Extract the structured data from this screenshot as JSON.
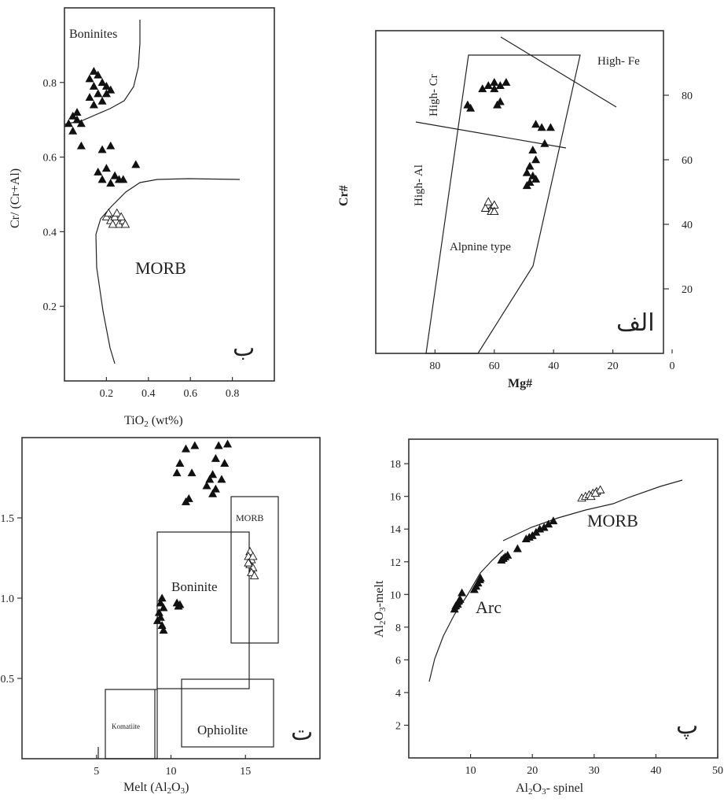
{
  "charts": {
    "b": {
      "type": "scatter",
      "tag": "ب",
      "xlabel_prefix": "TiO",
      "xlabel_sub": "2",
      "xlabel_suffix": " (wt%)",
      "ylabel": "Cr/ (Cr+Al)",
      "xlim": [
        0,
        1.0
      ],
      "ylim": [
        0,
        1.0
      ],
      "xticks": [
        "0.2",
        "0.4",
        "0.6",
        "0.8"
      ],
      "yticks": [
        "0.2",
        "0.4",
        "0.6",
        "0.8"
      ],
      "regions": {
        "boninites": "Boninites",
        "morb": "MORB"
      }
    },
    "alef": {
      "type": "scatter",
      "tag": "الف",
      "xlabel": "Mg#",
      "ylabel": "Cr#",
      "xlim": [
        100,
        0
      ],
      "ylim": [
        0,
        100
      ],
      "xticks": [
        "80",
        "60",
        "40",
        "20",
        "0"
      ],
      "yticks": [
        "20",
        "40",
        "60",
        "80"
      ],
      "regions": {
        "high_fe": "High- Fe",
        "high_cr": "High- Cr",
        "high_al": "High- Al",
        "alpine": "Alpnine type"
      }
    },
    "te": {
      "type": "scatter",
      "tag": "ت",
      "xlabel_prefix": "Melt (Al",
      "xlabel_sub1": "2",
      "xlabel_mid": "O",
      "xlabel_sub2": "3",
      "xlabel_suffix": ")",
      "ylabel": "",
      "xticks": [
        "5",
        "10",
        "15"
      ],
      "yticks": [
        "0.5",
        "1.0",
        "1.5"
      ],
      "regions": {
        "komatiite": "Komatiite",
        "boninite": "Boninite",
        "morb": "MORB",
        "ophiolite": "Ophiolite"
      }
    },
    "pe": {
      "type": "scatter",
      "tag": "پ",
      "xlabel_prefix": "Al",
      "xlabel_sub1": "2",
      "xlabel_mid": "O",
      "xlabel_sub2": "3",
      "xlabel_suffix": "- spinel",
      "ylabel_prefix": "Al",
      "ylabel_sub1": "2",
      "ylabel_mid": "O",
      "ylabel_sub2": "3",
      "ylabel_suffix": "-melt",
      "xlim": [
        0,
        50
      ],
      "ylim": [
        0,
        19.5
      ],
      "xticks": [
        "10",
        "20",
        "30",
        "40",
        "50"
      ],
      "yticks": [
        "2",
        "4",
        "6",
        "8",
        "10",
        "12",
        "14",
        "16",
        "18"
      ],
      "regions": {
        "morb": "MORB",
        "arc": "Arc"
      }
    }
  },
  "chart_data": [
    {
      "type": "scatter",
      "panel": "ب",
      "xlabel": "TiO2 (wt%)",
      "ylabel": "Cr/ (Cr+Al)",
      "xlim": [
        0,
        1.0
      ],
      "ylim": [
        0,
        1.0
      ],
      "series": [
        {
          "marker": "filled-triangle",
          "points": [
            [
              0.14,
              0.83
            ],
            [
              0.16,
              0.82
            ],
            [
              0.12,
              0.81
            ],
            [
              0.18,
              0.8
            ],
            [
              0.2,
              0.79
            ],
            [
              0.14,
              0.79
            ],
            [
              0.16,
              0.77
            ],
            [
              0.22,
              0.78
            ],
            [
              0.12,
              0.76
            ],
            [
              0.18,
              0.75
            ],
            [
              0.2,
              0.77
            ],
            [
              0.14,
              0.74
            ],
            [
              0.04,
              0.71
            ],
            [
              0.06,
              0.7
            ],
            [
              0.02,
              0.69
            ],
            [
              0.08,
              0.69
            ],
            [
              0.04,
              0.67
            ],
            [
              0.06,
              0.72
            ],
            [
              0.08,
              0.63
            ],
            [
              0.22,
              0.63
            ],
            [
              0.18,
              0.62
            ],
            [
              0.2,
              0.57
            ],
            [
              0.16,
              0.56
            ],
            [
              0.24,
              0.55
            ],
            [
              0.18,
              0.54
            ],
            [
              0.22,
              0.53
            ],
            [
              0.26,
              0.54
            ],
            [
              0.28,
              0.54
            ],
            [
              0.34,
              0.58
            ]
          ]
        },
        {
          "marker": "open-triangle",
          "points": [
            [
              0.2,
              0.44
            ],
            [
              0.22,
              0.43
            ],
            [
              0.24,
              0.44
            ],
            [
              0.26,
              0.42
            ],
            [
              0.28,
              0.43
            ],
            [
              0.23,
              0.42
            ],
            [
              0.25,
              0.45
            ],
            [
              0.27,
              0.44
            ],
            [
              0.21,
              0.45
            ],
            [
              0.29,
              0.42
            ]
          ]
        }
      ]
    },
    {
      "type": "scatter",
      "panel": "الف",
      "xlabel": "Mg#",
      "ylabel": "Cr#",
      "xlim": [
        100,
        0
      ],
      "ylim": [
        0,
        100
      ],
      "series": [
        {
          "marker": "filled-triangle",
          "points": [
            [
              62,
              83
            ],
            [
              60,
              84
            ],
            [
              58,
              83
            ],
            [
              56,
              84
            ],
            [
              64,
              82
            ],
            [
              60,
              82
            ],
            [
              58,
              78
            ],
            [
              59,
              77
            ],
            [
              69,
              77
            ],
            [
              68,
              76
            ],
            [
              46,
              71
            ],
            [
              44,
              70
            ],
            [
              41,
              70
            ],
            [
              43,
              65
            ],
            [
              47,
              63
            ],
            [
              46,
              60
            ],
            [
              48,
              58
            ],
            [
              49,
              56
            ],
            [
              47,
              55
            ],
            [
              48,
              53
            ],
            [
              49,
              52
            ],
            [
              46,
              54
            ]
          ]
        },
        {
          "marker": "open-triangle",
          "points": [
            [
              62,
              46
            ],
            [
              61,
              45
            ],
            [
              60,
              46
            ],
            [
              63,
              45
            ],
            [
              61,
              44
            ],
            [
              62,
              47
            ],
            [
              60,
              44
            ]
          ]
        }
      ]
    },
    {
      "type": "scatter",
      "panel": "ت",
      "xlabel": "Melt (Al2O3)",
      "xlim": [
        0,
        20
      ],
      "ylim": [
        0,
        2.0
      ],
      "series": [
        {
          "marker": "filled-triangle",
          "points": [
            [
              11.0,
              1.93
            ],
            [
              11.6,
              1.95
            ],
            [
              13.2,
              1.95
            ],
            [
              13.8,
              1.96
            ],
            [
              10.6,
              1.84
            ],
            [
              13.0,
              1.87
            ],
            [
              13.6,
              1.84
            ],
            [
              10.4,
              1.78
            ],
            [
              11.4,
              1.78
            ],
            [
              12.8,
              1.77
            ],
            [
              12.6,
              1.74
            ],
            [
              13.4,
              1.74
            ],
            [
              12.4,
              1.7
            ],
            [
              13.0,
              1.68
            ],
            [
              12.8,
              1.65
            ],
            [
              11.2,
              1.62
            ],
            [
              11.0,
              1.6
            ],
            [
              9.4,
              1.0
            ],
            [
              9.3,
              0.97
            ],
            [
              9.5,
              0.94
            ],
            [
              9.2,
              0.91
            ],
            [
              9.3,
              0.88
            ],
            [
              9.1,
              0.86
            ],
            [
              9.4,
              0.83
            ],
            [
              9.5,
              0.8
            ],
            [
              10.4,
              0.97
            ],
            [
              10.6,
              0.96
            ],
            [
              10.5,
              0.95
            ]
          ]
        },
        {
          "marker": "open-triangle",
          "points": [
            [
              15.3,
              1.29
            ],
            [
              15.2,
              1.26
            ],
            [
              15.4,
              1.24
            ],
            [
              15.3,
              1.21
            ],
            [
              15.5,
              1.19
            ],
            [
              15.4,
              1.16
            ],
            [
              15.6,
              1.14
            ],
            [
              15.2,
              1.22
            ],
            [
              15.5,
              1.26
            ]
          ]
        }
      ]
    },
    {
      "type": "scatter",
      "panel": "پ",
      "xlabel": "Al2O3- spinel",
      "ylabel": "Al2O3-melt",
      "xlim": [
        0,
        50
      ],
      "ylim": [
        0,
        19.5
      ],
      "series": [
        {
          "marker": "filled-triangle",
          "points": [
            [
              7.4,
              9.1
            ],
            [
              7.6,
              9.3
            ],
            [
              7.9,
              9.4
            ],
            [
              8.1,
              9.6
            ],
            [
              8.3,
              9.7
            ],
            [
              8.6,
              10.1
            ],
            [
              10.6,
              10.3
            ],
            [
              10.9,
              10.5
            ],
            [
              11.2,
              10.7
            ],
            [
              11.5,
              10.9
            ],
            [
              11.6,
              11.0
            ],
            [
              15.0,
              12.1
            ],
            [
              15.3,
              12.2
            ],
            [
              15.6,
              12.3
            ],
            [
              16.0,
              12.4
            ],
            [
              17.6,
              12.8
            ],
            [
              19.0,
              13.4
            ],
            [
              19.5,
              13.5
            ],
            [
              20.0,
              13.6
            ],
            [
              20.6,
              13.8
            ],
            [
              21.2,
              14.0
            ],
            [
              21.9,
              14.1
            ],
            [
              22.6,
              14.3
            ],
            [
              23.4,
              14.5
            ]
          ]
        },
        {
          "marker": "open-triangle",
          "points": [
            [
              28.0,
              15.9
            ],
            [
              28.6,
              16.0
            ],
            [
              29.2,
              16.1
            ],
            [
              29.8,
              16.2
            ],
            [
              30.4,
              16.3
            ],
            [
              31.0,
              16.4
            ],
            [
              29.5,
              16.0
            ],
            [
              30.2,
              16.2
            ]
          ]
        }
      ]
    }
  ]
}
